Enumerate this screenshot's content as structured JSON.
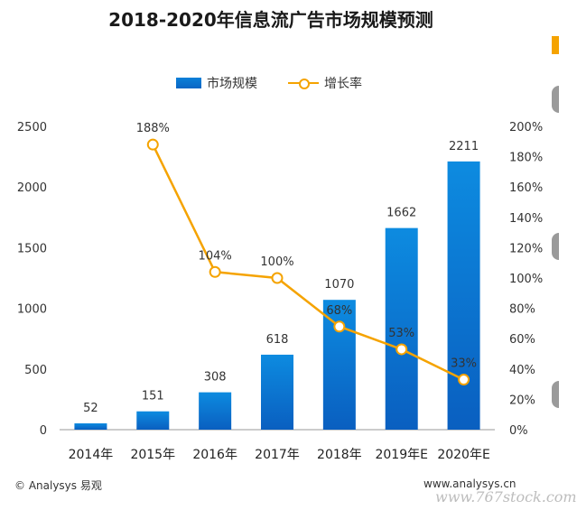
{
  "chart_data": {
    "type": "bar+line",
    "title": "2018-2020年信息流广告市场规模预测",
    "categories": [
      "2014年",
      "2015年",
      "2016年",
      "2017年",
      "2018年",
      "2019年E",
      "2020年E"
    ],
    "series": [
      {
        "name": "市场规模",
        "type": "bar",
        "axis": "left",
        "values": [
          52,
          151,
          308,
          618,
          1070,
          1662,
          2211
        ],
        "labels": [
          "52",
          "151",
          "308",
          "618",
          "1070",
          "1662",
          "2211"
        ]
      },
      {
        "name": "增长率",
        "type": "line",
        "axis": "right",
        "values": [
          null,
          188,
          104,
          100,
          68,
          53,
          33
        ],
        "labels": [
          null,
          "188%",
          "104%",
          "100%",
          "68%",
          "53%",
          "33%"
        ]
      }
    ],
    "y_left": {
      "min": 0,
      "max": 2500,
      "ticks": [
        0,
        500,
        1000,
        1500,
        2000,
        2500
      ]
    },
    "y_right": {
      "min": 0,
      "max": 200,
      "ticks": [
        "0%",
        "20%",
        "40%",
        "60%",
        "80%",
        "100%",
        "120%",
        "140%",
        "160%",
        "180%",
        "200%"
      ]
    },
    "legend_position": "top",
    "grid": false
  },
  "colors": {
    "bar": "#0a7fd8",
    "line": "#f5a300"
  },
  "footer": {
    "source": "© Analysys 易观",
    "site": "www.analysys.cn",
    "stamp": "www.767stock.com"
  }
}
